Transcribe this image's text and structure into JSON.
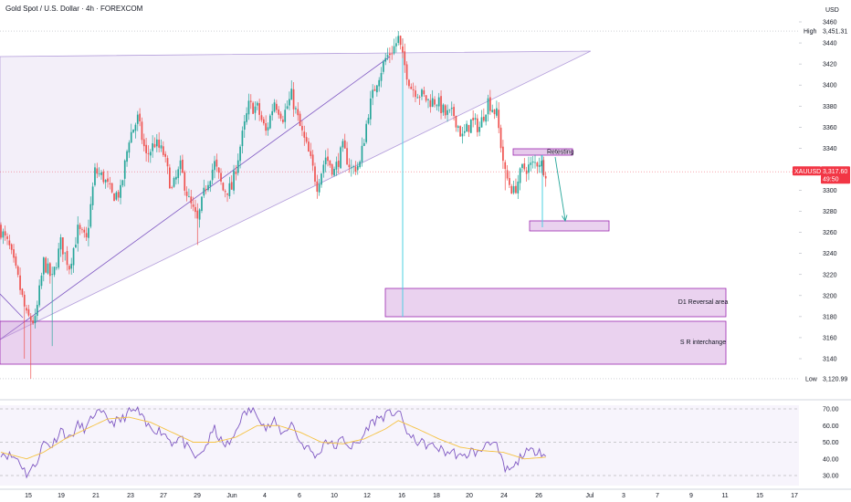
{
  "header": {
    "title": "Gold Spot / U.S. Dollar · 4h · FOREXCOM"
  },
  "price_axis": {
    "currency": "USD",
    "high_label": "High",
    "high_value": "3,451.31",
    "low_label": "Low",
    "low_value": "3,120.99",
    "symbol_label": "XAUUSD",
    "last_price": "3,317.60",
    "countdown": "49:50"
  },
  "rsi_axis": {
    "ticks": [
      "70.00",
      "60.00",
      "50.00",
      "40.00",
      "30.00"
    ]
  },
  "annotations": {
    "retesting": "Retesting",
    "d1_reversal": "D1 Reversal area",
    "sr_interchange": "S R interchange"
  },
  "colors": {
    "up": "#26a69a",
    "down": "#ef5350",
    "last_price": "#f23645",
    "zone_fill": "#e1bee7",
    "zone_border": "#9c27b0",
    "triangle": "#b39ddb",
    "rsi_line": "#7e57c2",
    "rsi_ma": "#f5c242"
  },
  "chart_data": [
    {
      "type": "candlestick",
      "title": "Gold Spot / U.S. Dollar · 4h · FOREXCOM",
      "ylim": [
        3110,
        3470
      ],
      "y_ticks": [
        3140,
        3160,
        3180,
        3200,
        3220,
        3240,
        3260,
        3280,
        3300,
        3320,
        3340,
        3360,
        3380,
        3400,
        3420,
        3440,
        3460
      ],
      "x_ticks": [
        "15",
        "19",
        "21",
        "23",
        "27",
        "29",
        "Jun",
        "4",
        "6",
        "10",
        "12",
        "16",
        "18",
        "20",
        "24",
        "26",
        "Jul",
        "3",
        "7",
        "9",
        "11",
        "15",
        "17"
      ],
      "high": 3451.31,
      "low": 3120.99,
      "last": 3317.6,
      "waypoints_close": [
        [
          0,
          3262
        ],
        [
          4,
          3245
        ],
        [
          8,
          3215
        ],
        [
          12,
          3180
        ],
        [
          16,
          3175
        ],
        [
          20,
          3232
        ],
        [
          24,
          3215
        ],
        [
          28,
          3250
        ],
        [
          32,
          3228
        ],
        [
          36,
          3262
        ],
        [
          40,
          3252
        ],
        [
          44,
          3318
        ],
        [
          48,
          3312
        ],
        [
          52,
          3295
        ],
        [
          56,
          3298
        ],
        [
          60,
          3350
        ],
        [
          64,
          3368
        ],
        [
          68,
          3332
        ],
        [
          72,
          3345
        ],
        [
          76,
          3335
        ],
        [
          80,
          3300
        ],
        [
          84,
          3322
        ],
        [
          88,
          3290
        ],
        [
          92,
          3270
        ],
        [
          96,
          3305
        ],
        [
          100,
          3325
        ],
        [
          104,
          3300
        ],
        [
          108,
          3302
        ],
        [
          112,
          3342
        ],
        [
          116,
          3380
        ],
        [
          120,
          3378
        ],
        [
          124,
          3355
        ],
        [
          128,
          3385
        ],
        [
          132,
          3370
        ],
        [
          136,
          3390
        ],
        [
          140,
          3360
        ],
        [
          144,
          3335
        ],
        [
          148,
          3305
        ],
        [
          152,
          3332
        ],
        [
          156,
          3318
        ],
        [
          160,
          3340
        ],
        [
          164,
          3320
        ],
        [
          168,
          3325
        ],
        [
          172,
          3375
        ],
        [
          176,
          3405
        ],
        [
          180,
          3425
        ],
        [
          184,
          3436
        ],
        [
          186,
          3444
        ],
        [
          188,
          3425
        ],
        [
          192,
          3398
        ],
        [
          196,
          3392
        ],
        [
          200,
          3385
        ],
        [
          204,
          3385
        ],
        [
          208,
          3372
        ],
        [
          212,
          3372
        ],
        [
          216,
          3350
        ],
        [
          220,
          3365
        ],
        [
          224,
          3360
        ],
        [
          228,
          3385
        ],
        [
          232,
          3372
        ],
        [
          236,
          3315
        ],
        [
          240,
          3298
        ],
        [
          244,
          3320
        ],
        [
          248,
          3323
        ],
        [
          252,
          3328
        ],
        [
          255,
          3318
        ]
      ],
      "rsi": {
        "levels": [
          70,
          50,
          30
        ],
        "ylim": [
          27,
          73
        ],
        "waypoints": [
          [
            0,
            44
          ],
          [
            8,
            40
          ],
          [
            12,
            31
          ],
          [
            16,
            36
          ],
          [
            20,
            50
          ],
          [
            24,
            48
          ],
          [
            28,
            58
          ],
          [
            32,
            52
          ],
          [
            36,
            60
          ],
          [
            40,
            58
          ],
          [
            44,
            68
          ],
          [
            48,
            66
          ],
          [
            52,
            62
          ],
          [
            56,
            63
          ],
          [
            60,
            68
          ],
          [
            64,
            69
          ],
          [
            68,
            60
          ],
          [
            72,
            58
          ],
          [
            76,
            56
          ],
          [
            80,
            50
          ],
          [
            84,
            53
          ],
          [
            88,
            45
          ],
          [
            92,
            40
          ],
          [
            96,
            48
          ],
          [
            100,
            58
          ],
          [
            104,
            48
          ],
          [
            108,
            50
          ],
          [
            112,
            64
          ],
          [
            116,
            69
          ],
          [
            120,
            68
          ],
          [
            124,
            58
          ],
          [
            128,
            62
          ],
          [
            132,
            55
          ],
          [
            136,
            62
          ],
          [
            140,
            50
          ],
          [
            144,
            46
          ],
          [
            148,
            41
          ],
          [
            152,
            52
          ],
          [
            156,
            47
          ],
          [
            160,
            52
          ],
          [
            164,
            47
          ],
          [
            168,
            50
          ],
          [
            172,
            60
          ],
          [
            176,
            64
          ],
          [
            180,
            66
          ],
          [
            184,
            68
          ],
          [
            186,
            69
          ],
          [
            188,
            62
          ],
          [
            192,
            52
          ],
          [
            196,
            50
          ],
          [
            200,
            48
          ],
          [
            204,
            47
          ],
          [
            208,
            44
          ],
          [
            212,
            44
          ],
          [
            216,
            40
          ],
          [
            220,
            45
          ],
          [
            224,
            43
          ],
          [
            228,
            52
          ],
          [
            232,
            47
          ],
          [
            236,
            33
          ],
          [
            240,
            34
          ],
          [
            244,
            43
          ],
          [
            248,
            44
          ],
          [
            252,
            46
          ],
          [
            255,
            41
          ]
        ],
        "ma_waypoints": [
          [
            0,
            44
          ],
          [
            12,
            40
          ],
          [
            20,
            44
          ],
          [
            30,
            52
          ],
          [
            40,
            58
          ],
          [
            50,
            64
          ],
          [
            60,
            65
          ],
          [
            70,
            62
          ],
          [
            80,
            56
          ],
          [
            90,
            50
          ],
          [
            100,
            50
          ],
          [
            110,
            53
          ],
          [
            120,
            60
          ],
          [
            130,
            60
          ],
          [
            140,
            56
          ],
          [
            150,
            50
          ],
          [
            160,
            49
          ],
          [
            170,
            52
          ],
          [
            180,
            58
          ],
          [
            186,
            63
          ],
          [
            195,
            58
          ],
          [
            205,
            52
          ],
          [
            215,
            47
          ],
          [
            225,
            45
          ],
          [
            235,
            44
          ],
          [
            245,
            40
          ],
          [
            255,
            41
          ]
        ]
      }
    }
  ]
}
